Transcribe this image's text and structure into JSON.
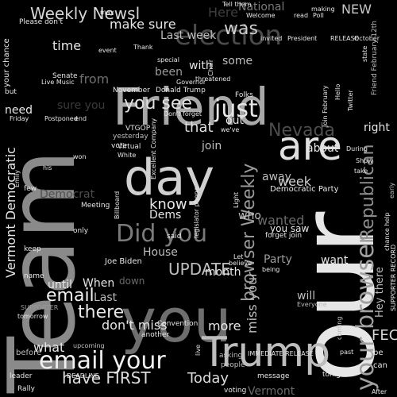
{
  "words": [
    {
      "text": "Team",
      "color": "#8a8a8a"
    },
    {
      "text": "our",
      "color": "#e6e6e6"
    },
    {
      "text": "Friend",
      "color": "#a8a8a8"
    },
    {
      "text": "you",
      "color": "#6e6e6e"
    },
    {
      "text": "day",
      "color": "#d0d0d0"
    },
    {
      "text": "Trump",
      "color": "#bdbdbd"
    },
    {
      "text": "are",
      "color": "#e0e0e0"
    },
    {
      "text": "your browser",
      "color": "#a0a0a0"
    },
    {
      "text": "email your",
      "color": "#f0f0f0"
    },
    {
      "text": "election",
      "color": "#4a4a4a"
    },
    {
      "text": "Weekly Newsl",
      "color": "#d6d6d6"
    },
    {
      "text": "Did you",
      "color": "#7a7a7a"
    },
    {
      "text": "just",
      "color": "#e6e6e6"
    },
    {
      "text": "you see",
      "color": "#e0e0e0"
    },
    {
      "text": "browser Weekly",
      "color": "#9a9a9a"
    },
    {
      "text": "Republican",
      "color": "#8e8e8e"
    },
    {
      "text": "was",
      "color": "#cfcfcf"
    },
    {
      "text": "Nevada",
      "color": "#4e4e4e"
    },
    {
      "text": "there",
      "color": "#e8e8e8"
    },
    {
      "text": "email",
      "color": "#f2f2f2"
    },
    {
      "text": "have FIRST",
      "color": "#dcdcdc"
    },
    {
      "text": "UPDATE",
      "color": "#bdbdbd"
    },
    {
      "text": "Today",
      "color": "#dadada"
    },
    {
      "text": "FEC",
      "color": "#d8d8d8"
    },
    {
      "text": "that",
      "color": "#dedede"
    },
    {
      "text": "know",
      "color": "#e6e6e6"
    },
    {
      "text": "Vermont Democratic",
      "color": "#e6e6e6"
    },
    {
      "text": "miss your",
      "color": "#bdbdbd"
    },
    {
      "text": "time",
      "color": "#e6e6e6"
    },
    {
      "text": "make sure",
      "color": "#e6e6e6"
    },
    {
      "text": "from",
      "color": "#6e6e6e"
    },
    {
      "text": "don't miss",
      "color": "#e6e6e6"
    },
    {
      "text": "what",
      "color": "#e6e6e6"
    },
    {
      "text": "more",
      "color": "#e6e6e6"
    },
    {
      "text": "Last week",
      "color": "#bdbdbd"
    },
    {
      "text": "Here",
      "color": "#3e3e3e"
    },
    {
      "text": "National",
      "color": "#7a7a7a"
    },
    {
      "text": "NEW",
      "color": "#c8c8c8"
    },
    {
      "text": "Democrat",
      "color": "#4e4e4e"
    },
    {
      "text": "Dems",
      "color": "#e6e6e6"
    },
    {
      "text": "House",
      "color": "#bdbdbd"
    },
    {
      "text": "week",
      "color": "#d0d0d0"
    },
    {
      "text": "wanted",
      "color": "#6a6a6a"
    },
    {
      "text": "until",
      "color": "#e6e6e6"
    },
    {
      "text": "When",
      "color": "#e6e6e6"
    },
    {
      "text": "Last",
      "color": "#bdbdbd"
    },
    {
      "text": "month",
      "color": "#e6e6e6"
    },
    {
      "text": "will",
      "color": "#bdbdbd"
    },
    {
      "text": "want",
      "color": "#e6e6e6"
    },
    {
      "text": "about",
      "color": "#e6e6e6"
    },
    {
      "text": "right",
      "color": "#e6e6e6"
    },
    {
      "text": "Party",
      "color": "#9a9a9a"
    },
    {
      "text": "away",
      "color": "#bdbdbd"
    },
    {
      "text": "who",
      "color": "#bdbdbd"
    },
    {
      "text": "join",
      "color": "#bdbdbd"
    },
    {
      "text": "with",
      "color": "#e6e6e6"
    },
    {
      "text": "been",
      "color": "#9a9a9a"
    },
    {
      "text": "some",
      "color": "#bdbdbd"
    },
    {
      "text": "sure you",
      "color": "#3a3a3a"
    },
    {
      "text": "need",
      "color": "#e6e6e6"
    },
    {
      "text": "out",
      "color": "#e6e6e6"
    },
    {
      "text": "you saw",
      "color": "#e6e6e6"
    },
    {
      "text": "forget join",
      "color": "#e6e6e6"
    },
    {
      "text": "Please don't",
      "color": "#e6e6e6"
    },
    {
      "text": "your chance",
      "color": "#e6e6e6"
    },
    {
      "text": "Joe Biden",
      "color": "#e6e6e6"
    },
    {
      "text": "Donald Trump",
      "color": "#e6e6e6"
    },
    {
      "text": "November",
      "color": "#e6e6e6"
    },
    {
      "text": "Democratic Party",
      "color": "#e6e6e6"
    },
    {
      "text": "Convention",
      "color": "#e6e6e6"
    },
    {
      "text": "Meeting",
      "color": "#e6e6e6"
    },
    {
      "text": "another",
      "color": "#e6e6e6"
    },
    {
      "text": "upcoming",
      "color": "#bdbdbd"
    },
    {
      "text": "message",
      "color": "#e6e6e6"
    },
    {
      "text": "tonight",
      "color": "#e6e6e6"
    },
    {
      "text": "leader",
      "color": "#e6e6e6"
    },
    {
      "text": "Rally",
      "color": "#e6e6e6"
    },
    {
      "text": "voting",
      "color": "#e6e6e6"
    },
    {
      "text": "people",
      "color": "#bdbdbd"
    },
    {
      "text": "asking",
      "color": "#bdbdbd"
    },
    {
      "text": "SUPPORTER",
      "color": "#9a9a9a"
    },
    {
      "text": "tomorrow",
      "color": "#e6e6e6"
    },
    {
      "text": "name",
      "color": "#e6e6e6"
    },
    {
      "text": "keep",
      "color": "#e6e6e6"
    },
    {
      "text": "only",
      "color": "#e6e6e6"
    },
    {
      "text": "said",
      "color": "#e6e6e6"
    },
    {
      "text": "few",
      "color": "#e6e6e6"
    },
    {
      "text": "Virtual",
      "color": "#e6e6e6"
    },
    {
      "text": "White",
      "color": "#e6e6e6"
    },
    {
      "text": "VTGOP",
      "color": "#e6e6e6"
    },
    {
      "text": "yesterday",
      "color": "#bdbdbd"
    },
    {
      "text": "vote",
      "color": "#e6e6e6"
    },
    {
      "text": "Senate",
      "color": "#e6e6e6"
    },
    {
      "text": "Live Music",
      "color": "#e6e6e6"
    },
    {
      "text": "Friday",
      "color": "#e6e6e6"
    },
    {
      "text": "Postponed",
      "color": "#e6e6e6"
    },
    {
      "text": "end",
      "color": "#e6e6e6"
    },
    {
      "text": "but",
      "color": "#e6e6e6"
    },
    {
      "text": "won",
      "color": "#e6e6e6"
    },
    {
      "text": "his",
      "color": "#e6e6e6"
    },
    {
      "text": "Folks",
      "color": "#e6e6e6"
    },
    {
      "text": "Don't forget",
      "color": "#e6e6e6"
    },
    {
      "text": "special",
      "color": "#e6e6e6"
    },
    {
      "text": "threatened",
      "color": "#e6e6e6"
    },
    {
      "text": "Governor",
      "color": "#e6e6e6"
    },
    {
      "text": "Thank",
      "color": "#e6e6e6"
    },
    {
      "text": "Chair",
      "color": "#e6e6e6"
    },
    {
      "text": "Tell them",
      "color": "#e6e6e6"
    },
    {
      "text": "Welcome",
      "color": "#e6e6e6"
    },
    {
      "text": "read",
      "color": "#e6e6e6"
    },
    {
      "text": "Poll",
      "color": "#e6e6e6"
    },
    {
      "text": "making",
      "color": "#e6e6e6"
    },
    {
      "text": "invited",
      "color": "#e6e6e6"
    },
    {
      "text": "President",
      "color": "#e6e6e6"
    },
    {
      "text": "RELEASE",
      "color": "#e6e6e6"
    },
    {
      "text": "October",
      "color": "#e6e6e6"
    },
    {
      "text": "Friend February 12th",
      "color": "#bdbdbd"
    },
    {
      "text": "event",
      "color": "#e6e6e6"
    },
    {
      "text": "may",
      "color": "#e6e6e6"
    },
    {
      "text": "state",
      "color": "#e6e6e6"
    },
    {
      "text": "Join February",
      "color": "#e6e6e6"
    },
    {
      "text": "During",
      "color": "#e6e6e6"
    },
    {
      "text": "Show",
      "color": "#e6e6e6"
    },
    {
      "text": "take",
      "color": "#e6e6e6"
    },
    {
      "text": "chance help",
      "color": "#e6e6e6"
    },
    {
      "text": "SUPPORTER RECORD",
      "color": "#e6e6e6"
    },
    {
      "text": "Hey there",
      "color": "#bdbdbd"
    },
    {
      "text": "be",
      "color": "#e6e6e6"
    },
    {
      "text": "can",
      "color": "#e6e6e6"
    },
    {
      "text": "After",
      "color": "#e6e6e6"
    },
    {
      "text": "past",
      "color": "#e6e6e6"
    },
    {
      "text": "IMMEDIATE RELEASE",
      "color": "#e6e6e6"
    },
    {
      "text": "Everyone",
      "color": "#bdbdbd"
    },
    {
      "text": "Let",
      "color": "#e6e6e6"
    },
    {
      "text": "believe",
      "color": "#e6e6e6"
    },
    {
      "text": "being",
      "color": "#e6e6e6"
    },
    {
      "text": "legislator phone",
      "color": "#e6e6e6"
    },
    {
      "text": "Excellent Company",
      "color": "#e6e6e6"
    },
    {
      "text": "Billboard",
      "color": "#e6e6e6"
    },
    {
      "text": "Light",
      "color": "#e6e6e6"
    },
    {
      "text": "we've",
      "color": "#e6e6e6"
    },
    {
      "text": "down",
      "color": "#6a6a6a"
    },
    {
      "text": "live",
      "color": "#e6e6e6"
    },
    {
      "text": "Vermont",
      "color": "#6a6a6a"
    },
    {
      "text": "DEADLINE",
      "color": "#e6e6e6"
    },
    {
      "text": "before",
      "color": "#bdbdbd"
    },
    {
      "text": "coming",
      "color": "#bdbdbd"
    },
    {
      "text": "Hello",
      "color": "#e6e6e6"
    },
    {
      "text": "Twitter",
      "color": "#e6e6e6"
    },
    {
      "text": "Emily",
      "color": "#e6e6e6"
    },
    {
      "text": "early",
      "color": "#bdbdbd"
    }
  ]
}
